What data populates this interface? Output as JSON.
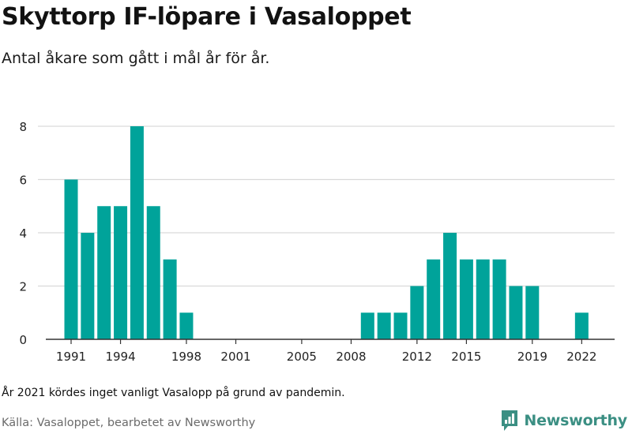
{
  "header": {
    "title": "Skyttorp IF-löpare i Vasaloppet",
    "subtitle": "Antal åkare som gått i mål år för år."
  },
  "footer": {
    "note": "År 2021 kördes inget vanligt Vasalopp på grund av pandemin.",
    "source": "Källa: Vasaloppet, bearbetet av Newsworthy",
    "brand": "Newsworthy",
    "brand_icon": "newsworthy-logo-icon"
  },
  "colors": {
    "bar": "#00a39a",
    "grid": "#d9d9d9",
    "axis": "#333333",
    "brand": "#3b8f83"
  },
  "chart_data": {
    "type": "bar",
    "title": "Skyttorp IF-löpare i Vasaloppet",
    "subtitle": "Antal åkare som gått i mål år för år.",
    "xlabel": "",
    "ylabel": "",
    "ylim": [
      0,
      8
    ],
    "yticks": [
      0,
      2,
      4,
      6,
      8
    ],
    "xticks": [
      1991,
      1994,
      1998,
      2001,
      2005,
      2008,
      2012,
      2015,
      2019,
      2022
    ],
    "grid": true,
    "categories": [
      1991,
      1992,
      1993,
      1994,
      1995,
      1996,
      1997,
      1998,
      1999,
      2000,
      2001,
      2002,
      2003,
      2004,
      2005,
      2006,
      2007,
      2008,
      2009,
      2010,
      2011,
      2012,
      2013,
      2014,
      2015,
      2016,
      2017,
      2018,
      2019,
      2020,
      2021,
      2022
    ],
    "values": [
      6,
      4,
      5,
      5,
      8,
      5,
      3,
      1,
      0,
      0,
      0,
      0,
      0,
      0,
      0,
      0,
      0,
      0,
      1,
      1,
      1,
      2,
      3,
      4,
      3,
      3,
      3,
      2,
      2,
      0,
      0,
      1
    ]
  }
}
